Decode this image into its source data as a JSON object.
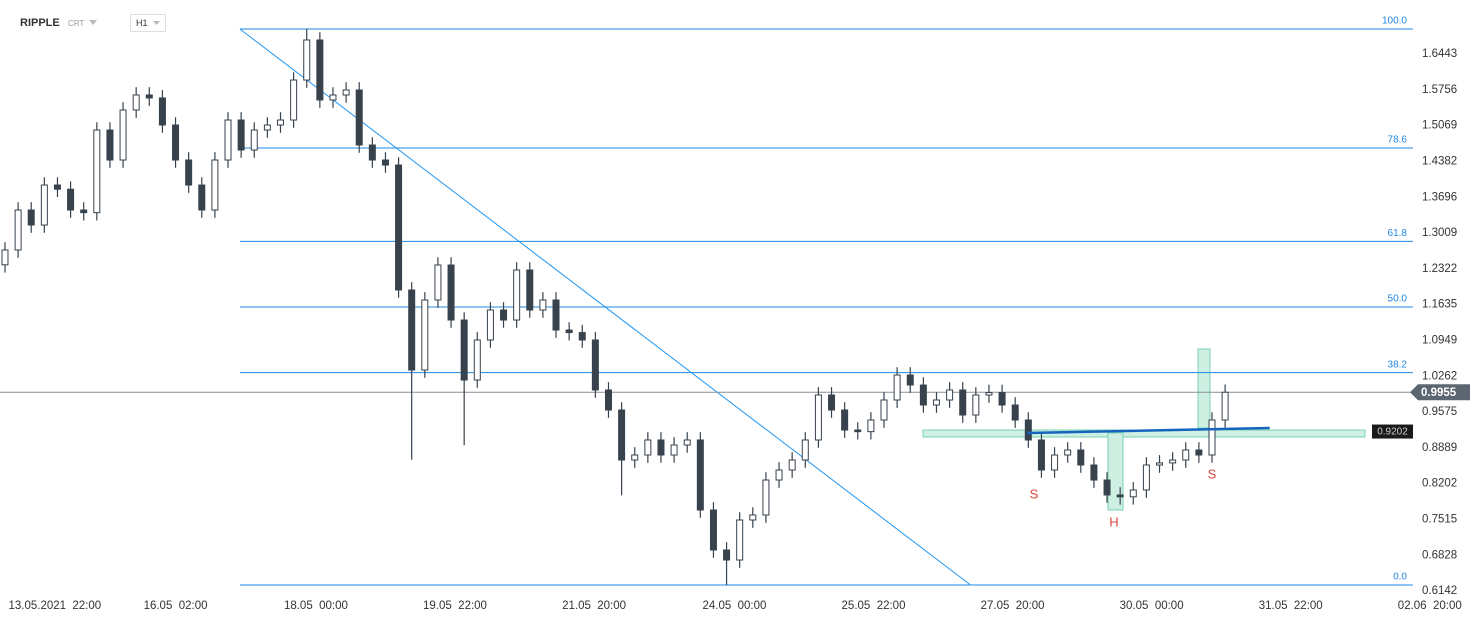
{
  "header": {
    "symbol": "RIPPLE",
    "market": "CRT",
    "interval": "H1"
  },
  "chart_data": {
    "type": "candlestick",
    "open": [
      1.24,
      1.2684,
      1.3451,
      1.3163,
      1.393,
      1.385,
      1.3451,
      1.34,
      1.4985,
      1.441,
      1.5369,
      1.5657,
      1.56,
      1.5081,
      1.441,
      1.393,
      1.3451,
      1.441,
      1.5177,
      1.4602,
      1.4985,
      1.5081,
      1.5177,
      1.5944,
      1.6712,
      1.5561,
      1.5657,
      1.5753,
      1.4698,
      1.441,
      1.4314,
      1.1917,
      1.0382,
      1.1725,
      1.2396,
      1.1341,
      1.019,
      1.0958,
      1.1533,
      1.1341,
      1.23,
      1.1533,
      1.1725,
      1.1149,
      1.11,
      1.0958,
      0.9999,
      0.9615,
      0.8656,
      0.8752,
      0.904,
      0.8752,
      0.8944,
      0.904,
      0.7697,
      0.693,
      0.6738,
      0.7505,
      0.7601,
      0.8272,
      0.8464,
      0.8656,
      0.904,
      0.9903,
      0.9615,
      0.9231,
      0.92,
      0.9423,
      0.9807,
      1.0286,
      1.0094,
      0.9711,
      0.9807,
      0.9999,
      0.9519,
      0.9903,
      0.995,
      0.9711,
      0.9423,
      0.904,
      0.8464,
      0.8752,
      0.8848,
      0.856,
      0.8272,
      0.7985,
      0.795,
      0.8081,
      0.856,
      0.86,
      0.8656,
      0.8848,
      0.8752,
      0.9423
    ],
    "high": [
      1.2834,
      1.3601,
      1.3601,
      1.408,
      1.408,
      1.4,
      1.3601,
      1.5135,
      1.5135,
      1.5519,
      1.5807,
      1.5807,
      1.575,
      1.5231,
      1.456,
      1.408,
      1.456,
      1.5327,
      1.5327,
      1.5135,
      1.5231,
      1.5327,
      1.6094,
      1.6923,
      1.6862,
      1.5807,
      1.5903,
      1.5903,
      1.4848,
      1.456,
      1.4464,
      1.2067,
      1.1875,
      1.2546,
      1.2546,
      1.1491,
      1.1108,
      1.1683,
      1.1683,
      1.245,
      1.245,
      1.1875,
      1.1875,
      1.1299,
      1.125,
      1.1108,
      1.0149,
      0.9765,
      0.8902,
      0.919,
      0.919,
      0.9094,
      0.919,
      0.919,
      0.7847,
      0.708,
      0.7655,
      0.7751,
      0.8422,
      0.8614,
      0.8806,
      0.919,
      1.0053,
      1.0053,
      0.9765,
      0.9381,
      0.9573,
      0.9957,
      1.0436,
      1.0436,
      1.0244,
      0.9957,
      1.0149,
      1.0149,
      1.0053,
      1.01,
      1.01,
      0.9861,
      0.9573,
      0.919,
      0.8902,
      0.8998,
      0.8998,
      0.871,
      0.8422,
      0.8135,
      0.8231,
      0.871,
      0.875,
      0.8806,
      0.8998,
      0.8998,
      0.9573,
      1.0105
    ],
    "low": [
      1.225,
      1.2534,
      1.3013,
      1.3013,
      1.37,
      1.3301,
      1.325,
      1.325,
      1.426,
      1.426,
      1.5219,
      1.545,
      1.4931,
      1.426,
      1.378,
      1.3301,
      1.3301,
      1.426,
      1.4452,
      1.4452,
      1.4835,
      1.4931,
      1.5027,
      1.5794,
      1.5411,
      1.5411,
      1.5507,
      1.4548,
      1.426,
      1.4164,
      1.1767,
      0.866,
      1.0232,
      1.1575,
      1.1191,
      0.894,
      1.004,
      1.0808,
      1.1191,
      1.1191,
      1.1383,
      1.1383,
      1.0999,
      1.095,
      1.0808,
      0.9849,
      0.9465,
      0.798,
      0.8506,
      0.8602,
      0.8602,
      0.8602,
      0.8794,
      0.7547,
      0.678,
      0.6258,
      0.6588,
      0.7355,
      0.7451,
      0.8122,
      0.8314,
      0.8506,
      0.889,
      0.9465,
      0.9081,
      0.905,
      0.905,
      0.9273,
      0.9657,
      0.9944,
      0.9561,
      0.9561,
      0.9657,
      0.9369,
      0.9369,
      0.9753,
      0.9561,
      0.9273,
      0.889,
      0.8314,
      0.8314,
      0.8602,
      0.841,
      0.8122,
      0.7835,
      0.78,
      0.78,
      0.7931,
      0.841,
      0.845,
      0.8506,
      0.8602,
      0.8602,
      0.9273
    ],
    "close": [
      1.2684,
      1.3451,
      1.3163,
      1.393,
      1.385,
      1.3451,
      1.34,
      1.4985,
      1.441,
      1.5369,
      1.5657,
      1.56,
      1.5081,
      1.441,
      1.393,
      1.3451,
      1.441,
      1.5177,
      1.4602,
      1.4985,
      1.5081,
      1.5177,
      1.5944,
      1.6712,
      1.5561,
      1.5657,
      1.5753,
      1.4698,
      1.441,
      1.4314,
      1.1917,
      1.0382,
      1.1725,
      1.2396,
      1.1341,
      1.019,
      1.0958,
      1.1533,
      1.1341,
      1.23,
      1.1533,
      1.1725,
      1.1149,
      1.11,
      1.0958,
      0.9999,
      0.9615,
      0.8656,
      0.8752,
      0.904,
      0.8752,
      0.8944,
      0.904,
      0.7697,
      0.693,
      0.6738,
      0.7505,
      0.7601,
      0.8272,
      0.8464,
      0.8656,
      0.904,
      0.9903,
      0.9615,
      0.9231,
      0.92,
      0.9423,
      0.9807,
      1.0286,
      1.0094,
      0.9711,
      0.9807,
      0.9999,
      0.9519,
      0.9903,
      0.995,
      0.9711,
      0.9423,
      0.904,
      0.8464,
      0.8752,
      0.8848,
      0.856,
      0.8272,
      0.7985,
      0.795,
      0.8081,
      0.856,
      0.86,
      0.8656,
      0.8848,
      0.8752,
      0.9423,
      0.9955
    ],
    "up_color": "#ffffff",
    "down_color": "#37424d",
    "xlim": [
      -0.38,
      112.58
    ],
    "ylim": [
      0.5779,
      1.7479
    ],
    "xticks": [
      {
        "value": 3.8,
        "label": "13.05.2021  22:00"
      },
      {
        "value": 13.0,
        "label": "16.05  02:00"
      },
      {
        "value": 23.7,
        "label": "18.05  00:00"
      },
      {
        "value": 34.3,
        "label": "19.05  22:00"
      },
      {
        "value": 44.9,
        "label": "21.05  20:00"
      },
      {
        "value": 55.6,
        "label": "24.05  00:00"
      },
      {
        "value": 66.2,
        "label": "25.05  22:00"
      },
      {
        "value": 76.8,
        "label": "27.05  20:00"
      },
      {
        "value": 87.4,
        "label": "30.05  00:00"
      },
      {
        "value": 98.0,
        "label": "31.05  22:00"
      },
      {
        "value": 108.6,
        "label": "02.06  20:00"
      }
    ],
    "yticks": [
      1.6443,
      1.5756,
      1.5069,
      1.4382,
      1.3696,
      1.3009,
      1.2322,
      1.1635,
      1.0949,
      1.0262,
      0.9575,
      0.8889,
      0.8202,
      0.7515,
      0.6828,
      0.6142
    ],
    "grid": false,
    "fibonacci": [
      {
        "label": "100.0",
        "value": 1.6923
      },
      {
        "label": "78.6",
        "value": 1.464
      },
      {
        "label": "61.8",
        "value": 1.2849
      },
      {
        "label": "50.0",
        "value": 1.159
      },
      {
        "label": "38.2",
        "value": 1.0332
      },
      {
        "label": "0.0",
        "value": 0.6258
      }
    ],
    "trendline": {
      "x": [
        17.9,
        73.6
      ],
      "y": [
        1.6923,
        0.6258
      ]
    },
    "neckline": {
      "x": [
        77.9,
        96.4
      ],
      "y": [
        0.9174,
        0.927
      ]
    },
    "last_price": 0.9955,
    "level_label": 0.9202,
    "annotations": [
      "S",
      "H",
      "S"
    ]
  }
}
